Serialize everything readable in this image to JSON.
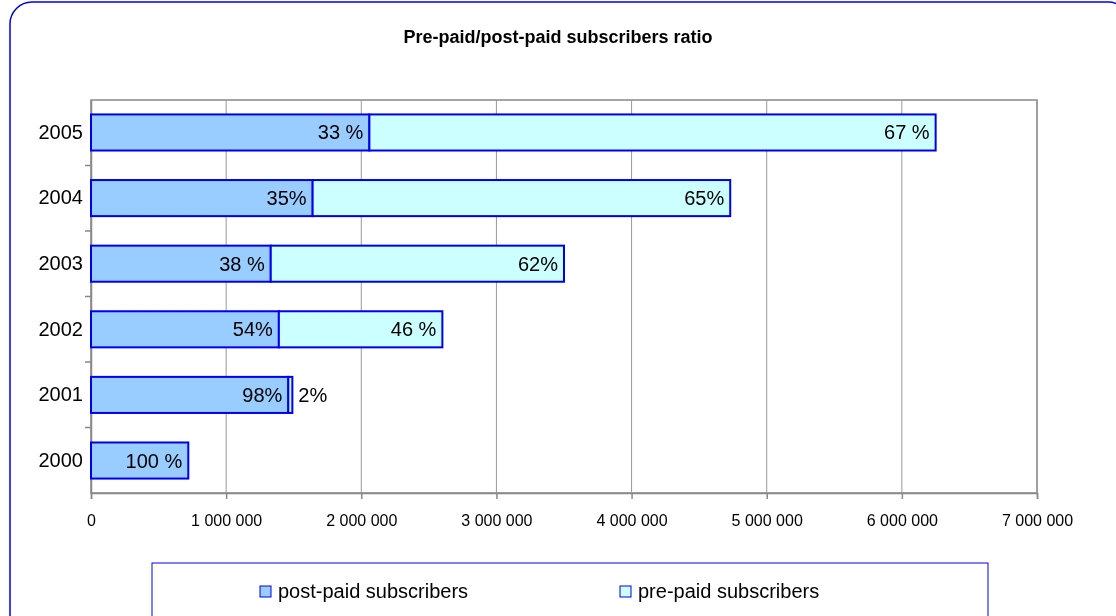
{
  "chart_data": {
    "type": "bar",
    "title": "Pre-paid/post-paid subscribers ratio",
    "orientation": "horizontal",
    "stacked": true,
    "categories": [
      "2005",
      "2004",
      "2003",
      "2002",
      "2001",
      "2000"
    ],
    "series": [
      {
        "name": "post-paid subscribers",
        "color": "#99ccff",
        "values": [
          2060000,
          1640000,
          1330000,
          1390000,
          1460000,
          720000
        ]
      },
      {
        "name": "pre-paid subscribers",
        "color": "#ccffff",
        "values": [
          4190000,
          3090000,
          2170000,
          1210000,
          30000,
          0
        ]
      }
    ],
    "annotations": [
      {
        "text": "33 %",
        "x": 2060000,
        "y": "2005"
      },
      {
        "text": "67 %",
        "x": 6250000,
        "y": "2005"
      },
      {
        "text": "35%",
        "x": 1640000,
        "y": "2004"
      },
      {
        "text": "65%",
        "x": 4730000,
        "y": "2004"
      },
      {
        "text": "38 %",
        "x": 1330000,
        "y": "2003"
      },
      {
        "text": "62%",
        "x": 3500000,
        "y": "2003"
      },
      {
        "text": "54%",
        "x": 1390000,
        "y": "2002"
      },
      {
        "text": "46 %",
        "x": 2600000,
        "y": "2002"
      },
      {
        "text": "98%",
        "x": 1460000,
        "y": "2001"
      },
      {
        "text": "2%",
        "x": 1490000,
        "y": "2001"
      },
      {
        "text": "100 %",
        "x": 720000,
        "y": "2000"
      }
    ],
    "xlim": [
      0,
      7000000
    ],
    "xticks": [
      {
        "value": 0,
        "label": "0"
      },
      {
        "value": 1000000,
        "label": "1 000 000"
      },
      {
        "value": 2000000,
        "label": "2 000 000"
      },
      {
        "value": 3000000,
        "label": "3 000 000"
      },
      {
        "value": 4000000,
        "label": "4 000 000"
      },
      {
        "value": 5000000,
        "label": "5 000 000"
      },
      {
        "value": 6000000,
        "label": "6 000 000"
      },
      {
        "value": 7000000,
        "label": "7 000 000"
      }
    ],
    "grid": "x",
    "legend": "bottom"
  }
}
